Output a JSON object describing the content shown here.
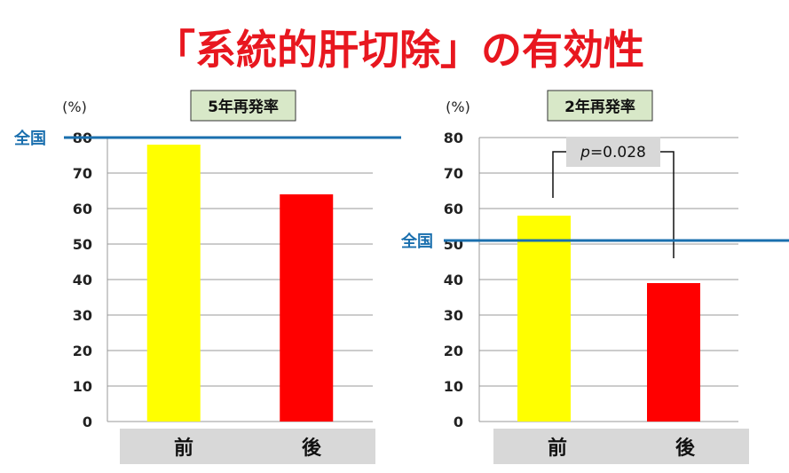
{
  "page_title": "「系統的肝切除」の有効性",
  "colors": {
    "title": "#e8171f",
    "before_bar": "#ffff00",
    "after_bar": "#ff0000",
    "reference_line": "#1a6fae",
    "reference_label": "#1a6fae",
    "panel_title_bg": "#d8e8c8",
    "category_bg": "#d8d8d8",
    "pvalue_bg": "#d8d8d8",
    "grid": "#999999",
    "axis_text": "#222222"
  },
  "chart_data": [
    {
      "type": "bar",
      "title": "5年再発率",
      "unit_label": "(%)",
      "categories": [
        "前",
        "後"
      ],
      "values": [
        78,
        64
      ],
      "ylim": [
        0,
        80
      ],
      "yticks": [
        0,
        10,
        20,
        30,
        40,
        50,
        60,
        70,
        80
      ],
      "grid": true,
      "reference_line": {
        "label": "全国",
        "value": 80
      }
    },
    {
      "type": "bar",
      "title": "2年再発率",
      "unit_label": "(%)",
      "categories": [
        "前",
        "後"
      ],
      "values": [
        58,
        39
      ],
      "ylim": [
        0,
        80
      ],
      "yticks": [
        0,
        10,
        20,
        30,
        40,
        50,
        60,
        70,
        80
      ],
      "grid": true,
      "reference_line": {
        "label": "全国",
        "value": 51
      },
      "significance": {
        "p_symbol": "p",
        "p_text": "=0.028"
      }
    }
  ]
}
